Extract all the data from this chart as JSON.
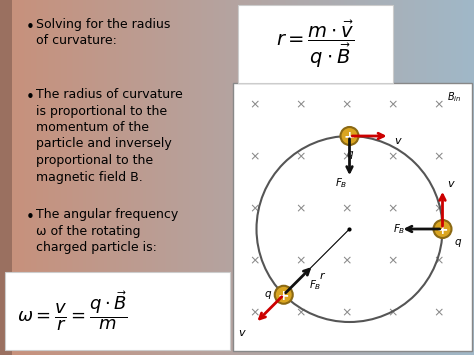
{
  "bg_left_color": "#c8927a",
  "bg_right_color": "#a0b8c8",
  "text_color": "#111111",
  "bullet_points": [
    "Solving for the radius\nof curvature:",
    "The radius of curvature\nis proportional to the\nmomentum of the\nparticle and inversely\nproportional to the\nmagnetic field B.",
    "The angular frequency\nω of the rotating\ncharged particle is:"
  ],
  "diagram_bg": "#ffffff",
  "circle_color": "#555555",
  "particle_color": "#DAA520",
  "particle_edge_color": "#8B6914",
  "arrow_v_color": "#cc0000",
  "arrow_f_color": "#111111",
  "cross_color": "#888888",
  "formula_box_color": "#ffffff",
  "formula_box_edge": "#cccccc"
}
